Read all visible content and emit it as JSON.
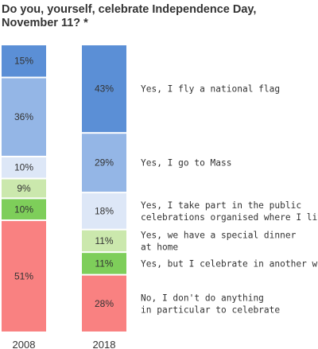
{
  "title": [
    "Do you, yourself, celebrate Independence Day,",
    "November 11? *"
  ],
  "chart_data": {
    "type": "bar",
    "stacked": true,
    "title": "Do you, yourself, celebrate Independence Day, November 11? *",
    "categories": [
      "2008",
      "2018"
    ],
    "series": [
      {
        "name": "Yes, I fly a national flag",
        "values": [
          15,
          43
        ],
        "labels": [
          "15%",
          "43%"
        ],
        "color": "#5b8fd6"
      },
      {
        "name": "Yes, I go to Mass",
        "values": [
          36,
          29
        ],
        "labels": [
          "36%",
          "29%"
        ],
        "color": "#94b6e6"
      },
      {
        "name": "Yes, I take part in the public celebrations organised where I live",
        "values": [
          10,
          18
        ],
        "labels": [
          "10%",
          "18%"
        ],
        "color": "#dde7f7"
      },
      {
        "name": "Yes, we have a special dinner at home",
        "values": [
          9,
          11
        ],
        "labels": [
          "9%",
          "11%"
        ],
        "color": "#cbe8ad"
      },
      {
        "name": "Yes, but I celebrate in another way",
        "values": [
          10,
          11
        ],
        "labels": [
          "10%",
          "11%"
        ],
        "color": "#7ece5a"
      },
      {
        "name": "No, I don't do anything in particular to celebrate",
        "values": [
          51,
          28
        ],
        "labels": [
          "51%",
          "28%"
        ],
        "color": "#f98181"
      }
    ],
    "legend": {
      "placement": "right",
      "lines": [
        [
          "Yes, I fly a national flag"
        ],
        [
          "Yes, I go to Mass"
        ],
        [
          "Yes, I take part in the public",
          "celebrations organised where I live"
        ],
        [
          "Yes, we have a special dinner",
          "at home"
        ],
        [
          "Yes, but I celebrate in another way"
        ],
        [
          "No, I don't do anything",
          "in particular to celebrate"
        ]
      ]
    }
  }
}
